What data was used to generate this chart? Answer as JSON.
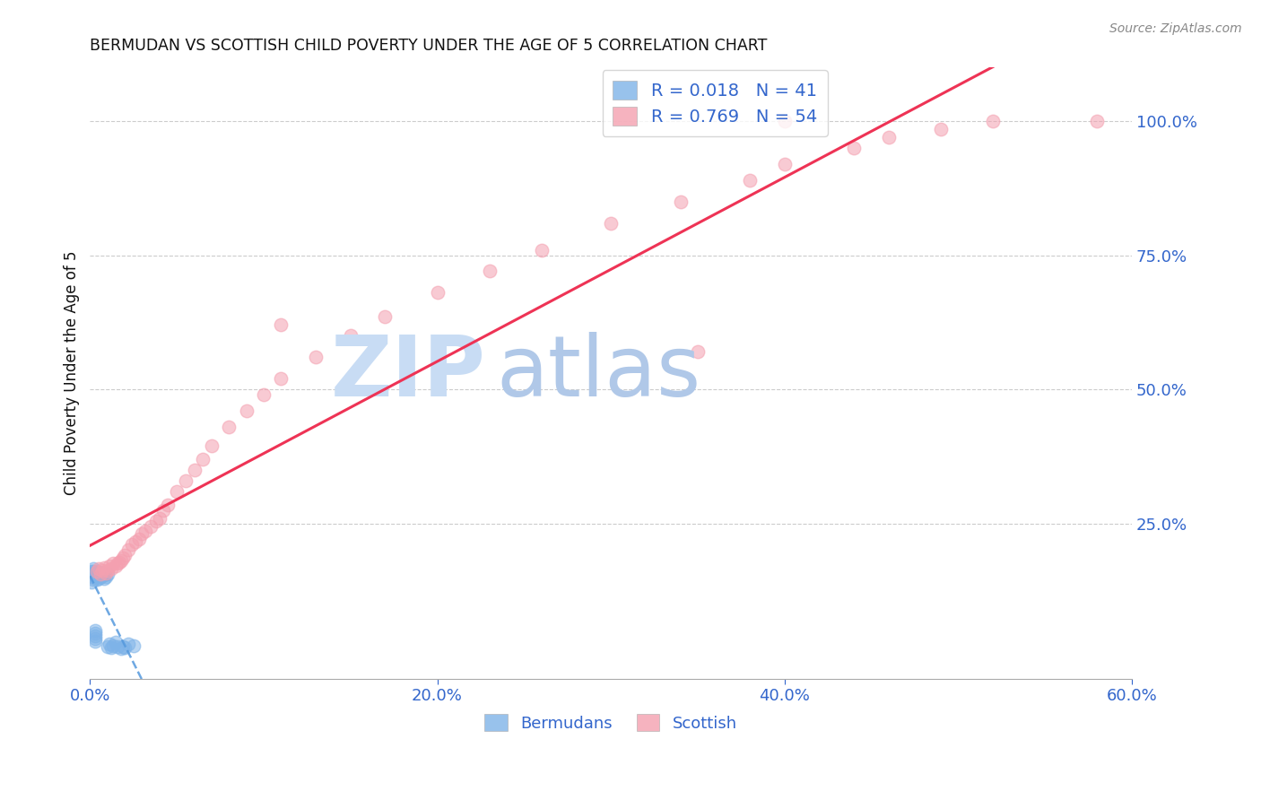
{
  "title": "BERMUDAN VS SCOTTISH CHILD POVERTY UNDER THE AGE OF 5 CORRELATION CHART",
  "source": "Source: ZipAtlas.com",
  "xlabel_ticks": [
    "0.0%",
    "20.0%",
    "40.0%",
    "60.0%"
  ],
  "xlabel_tick_vals": [
    0.0,
    0.2,
    0.4,
    0.6
  ],
  "ylabel_ticks_right": [
    "100.0%",
    "75.0%",
    "50.0%",
    "25.0%"
  ],
  "ylabel_tick_vals_right": [
    1.0,
    0.75,
    0.5,
    0.25
  ],
  "ylabel_label": "Child Poverty Under the Age of 5",
  "legend_bottom": [
    "Bermudans",
    "Scottish"
  ],
  "bermuda_R": 0.018,
  "bermuda_N": 41,
  "scottish_R": 0.769,
  "scottish_N": 54,
  "blue_color": "#7EB3E8",
  "pink_color": "#F4A0B0",
  "blue_line_color": "#5599DD",
  "pink_line_color": "#EE3355",
  "title_color": "#111111",
  "axis_label_color": "#3366CC",
  "legend_text_color": "#3366CC",
  "background_color": "#FFFFFF",
  "grid_color": "#CCCCCC",
  "xlim": [
    0.0,
    0.6
  ],
  "ylim": [
    -0.04,
    1.1
  ],
  "bermuda_x": [
    0.001,
    0.001,
    0.001,
    0.001,
    0.002,
    0.002,
    0.002,
    0.002,
    0.002,
    0.002,
    0.003,
    0.003,
    0.003,
    0.003,
    0.003,
    0.004,
    0.004,
    0.004,
    0.004,
    0.005,
    0.005,
    0.005,
    0.006,
    0.006,
    0.007,
    0.007,
    0.008,
    0.008,
    0.009,
    0.01,
    0.01,
    0.011,
    0.012,
    0.013,
    0.015,
    0.016,
    0.018,
    0.019,
    0.02,
    0.022,
    0.025
  ],
  "bermuda_y": [
    0.14,
    0.15,
    0.155,
    0.16,
    0.145,
    0.15,
    0.155,
    0.157,
    0.16,
    0.165,
    0.03,
    0.035,
    0.04,
    0.045,
    0.05,
    0.145,
    0.15,
    0.155,
    0.16,
    0.148,
    0.153,
    0.158,
    0.15,
    0.157,
    0.152,
    0.158,
    0.148,
    0.154,
    0.15,
    0.155,
    0.02,
    0.025,
    0.018,
    0.022,
    0.028,
    0.02,
    0.016,
    0.02,
    0.018,
    0.025,
    0.022
  ],
  "scottish_x": [
    0.004,
    0.005,
    0.006,
    0.007,
    0.008,
    0.009,
    0.01,
    0.011,
    0.012,
    0.013,
    0.015,
    0.016,
    0.017,
    0.018,
    0.019,
    0.02,
    0.022,
    0.024,
    0.026,
    0.028,
    0.03,
    0.032,
    0.035,
    0.038,
    0.04,
    0.042,
    0.045,
    0.05,
    0.055,
    0.06,
    0.065,
    0.07,
    0.08,
    0.09,
    0.1,
    0.11,
    0.13,
    0.15,
    0.17,
    0.2,
    0.23,
    0.26,
    0.3,
    0.34,
    0.38,
    0.4,
    0.44,
    0.46,
    0.49,
    0.52,
    0.11,
    0.35,
    0.4,
    0.58
  ],
  "scottish_y": [
    0.16,
    0.165,
    0.155,
    0.162,
    0.168,
    0.158,
    0.163,
    0.17,
    0.165,
    0.175,
    0.17,
    0.175,
    0.178,
    0.18,
    0.185,
    0.19,
    0.2,
    0.21,
    0.215,
    0.22,
    0.23,
    0.235,
    0.245,
    0.255,
    0.26,
    0.275,
    0.285,
    0.31,
    0.33,
    0.35,
    0.37,
    0.395,
    0.43,
    0.46,
    0.49,
    0.52,
    0.56,
    0.6,
    0.635,
    0.68,
    0.72,
    0.76,
    0.81,
    0.85,
    0.89,
    0.92,
    0.95,
    0.97,
    0.985,
    1.0,
    0.62,
    0.57,
    1.0,
    1.0
  ]
}
